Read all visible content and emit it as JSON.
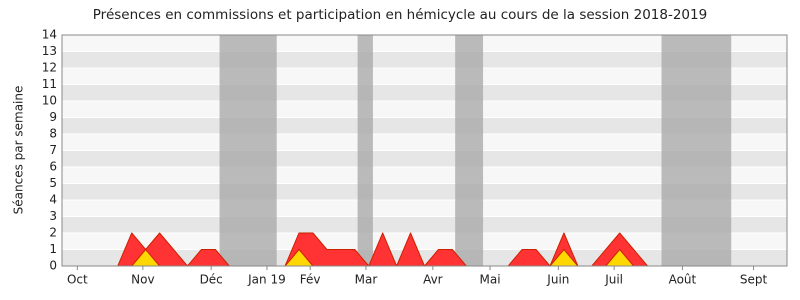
{
  "chart_data": {
    "type": "area",
    "title": "Présences en commissions et participation en hémicycle au cours de la session 2018-2019",
    "y_label": "Séances par semaine",
    "x": [
      0,
      1,
      2,
      3,
      4,
      5,
      6,
      7,
      8,
      9,
      10,
      11,
      12,
      13,
      14,
      15,
      16,
      17,
      18,
      19,
      20,
      21,
      22,
      23,
      24,
      25,
      26,
      27,
      28,
      29,
      30,
      31,
      32,
      33,
      34,
      35,
      36,
      37,
      38,
      39,
      40,
      41,
      42,
      43,
      44,
      45,
      46,
      47,
      48,
      49,
      50,
      51
    ],
    "series": [
      {
        "color": "#ff3333",
        "values": [
          0,
          0,
          0,
          0,
          0,
          2,
          1,
          2,
          1,
          0,
          1,
          1,
          0,
          0,
          0,
          0,
          0,
          2,
          2,
          1,
          1,
          1,
          0,
          2,
          0,
          2,
          0,
          1,
          1,
          0,
          0,
          0,
          0,
          1,
          1,
          0,
          2,
          0,
          0,
          1,
          2,
          1,
          0,
          0,
          0,
          0,
          0,
          0,
          0,
          0,
          0,
          0
        ]
      },
      {
        "color": "#ffd700",
        "values": [
          0,
          0,
          0,
          0,
          0,
          0,
          1,
          0,
          0,
          0,
          0,
          0,
          0,
          0,
          0,
          0,
          0,
          1,
          0,
          0,
          0,
          0,
          0,
          0,
          0,
          0,
          0,
          0,
          0,
          0,
          0,
          0,
          0,
          0,
          0,
          0,
          1,
          0,
          0,
          0,
          1,
          0,
          0,
          0,
          0,
          0,
          0,
          0,
          0,
          0,
          0,
          0
        ]
      }
    ],
    "shaded_periods": [
      [
        11.3,
        15.4
      ],
      [
        21.2,
        22.3
      ],
      [
        28.2,
        30.2
      ],
      [
        43.0,
        48.0
      ]
    ],
    "shade_color": "#aaaaaa",
    "xlim": [
      0,
      52
    ],
    "xticks": [
      {
        "value": 1.1,
        "label": "Oct"
      },
      {
        "value": 5.8,
        "label": "Nov"
      },
      {
        "value": 10.7,
        "label": "Déc"
      },
      {
        "value": 14.7,
        "label": "Jan 19"
      },
      {
        "value": 17.8,
        "label": "Fév"
      },
      {
        "value": 21.8,
        "label": "Mar"
      },
      {
        "value": 26.6,
        "label": "Avr"
      },
      {
        "value": 30.7,
        "label": "Mai"
      },
      {
        "value": 35.6,
        "label": "Juin"
      },
      {
        "value": 39.6,
        "label": "Juil"
      },
      {
        "value": 44.5,
        "label": "Août"
      },
      {
        "value": 49.6,
        "label": "Sept"
      }
    ],
    "ylim": [
      0,
      14
    ],
    "yticks": [
      0,
      1,
      2,
      3,
      4,
      5,
      6,
      7,
      8,
      9,
      10,
      11,
      12,
      13,
      14
    ],
    "grid": true
  }
}
